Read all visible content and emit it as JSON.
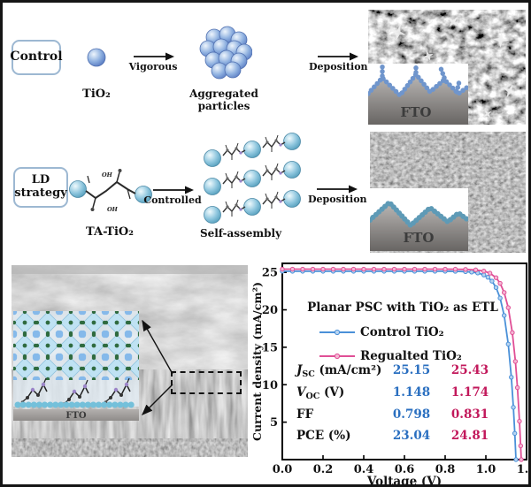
{
  "figure": {
    "rows": {
      "control": {
        "box_label": "Control",
        "particle_label": "TiO₂",
        "arrow1_label": "Vigorous",
        "aggregate_label": "Aggregated particles",
        "arrow2_label": "Deposition",
        "inset_label": "FTO"
      },
      "ld": {
        "box_label_line1": "LD",
        "box_label_line2": "strategy",
        "molecule_label": "TA-TiO₂",
        "arrow1_label": "Controlled",
        "assembly_label": "Self-assembly",
        "arrow2_label": "Deposition",
        "inset_label": "FTO"
      }
    },
    "sem_cross_section": {
      "inset_label": "FTO"
    }
  },
  "chart_data": {
    "type": "line",
    "title": "Planar PSC with TiO₂ as ETL",
    "xlabel": "Voltage (V)",
    "ylabel": "Current density (mA/cm²)",
    "xlim": [
      0,
      1.2
    ],
    "ylim": [
      0,
      26.2
    ],
    "xticks": [
      "0.0",
      "0.2",
      "0.4",
      "0.6",
      "0.8",
      "1.0",
      "1.2"
    ],
    "yticks": [
      5,
      10,
      15,
      20,
      25
    ],
    "grid": false,
    "legend_position": "inside-top-left",
    "series": [
      {
        "name": "Control TiO₂",
        "color": "#4a90d8",
        "marker_fill": "#b8d4f0",
        "jsc": 25.15,
        "voc": 1.148,
        "x": [
          0,
          0.05,
          0.1,
          0.15,
          0.2,
          0.25,
          0.3,
          0.35,
          0.4,
          0.45,
          0.5,
          0.55,
          0.6,
          0.65,
          0.7,
          0.75,
          0.8,
          0.85,
          0.9,
          0.93,
          0.96,
          0.99,
          1.01,
          1.03,
          1.05,
          1.07,
          1.09,
          1.11,
          1.125,
          1.135,
          1.142,
          1.148
        ],
        "y": [
          25.15,
          25.15,
          25.15,
          25.15,
          25.15,
          25.15,
          25.15,
          25.15,
          25.15,
          25.15,
          25.15,
          25.15,
          25.15,
          25.15,
          25.15,
          25.15,
          25.15,
          25.14,
          25.1,
          25.04,
          24.92,
          24.66,
          24.35,
          23.83,
          22.98,
          21.57,
          19.25,
          15.42,
          11.0,
          6.98,
          3.5,
          0
        ]
      },
      {
        "name": "Regualted TiO₂",
        "color": "#e04f96",
        "marker_fill": "#f4b8d4",
        "jsc": 25.43,
        "voc": 1.174,
        "x": [
          0,
          0.05,
          0.1,
          0.15,
          0.2,
          0.25,
          0.3,
          0.35,
          0.4,
          0.45,
          0.5,
          0.55,
          0.6,
          0.65,
          0.7,
          0.75,
          0.8,
          0.85,
          0.9,
          0.95,
          0.99,
          1.02,
          1.05,
          1.07,
          1.09,
          1.11,
          1.13,
          1.145,
          1.155,
          1.165,
          1.171,
          1.174
        ],
        "y": [
          25.43,
          25.43,
          25.43,
          25.43,
          25.43,
          25.43,
          25.43,
          25.43,
          25.43,
          25.43,
          25.43,
          25.43,
          25.43,
          25.43,
          25.43,
          25.43,
          25.43,
          25.42,
          25.4,
          25.33,
          25.17,
          24.89,
          24.29,
          23.54,
          22.31,
          20.29,
          16.96,
          13.11,
          9.61,
          5.12,
          1.84,
          0
        ]
      }
    ],
    "table": {
      "value_colors": {
        "control": "#2a6fc0",
        "regulated": "#c2185b"
      },
      "rows": [
        {
          "sym": "J",
          "italic": true,
          "sub": "SC",
          "unit": " (mA/cm²)",
          "control": "25.15",
          "regulated": "25.43"
        },
        {
          "sym": "V",
          "italic": true,
          "sub": "OC",
          "unit": " (V)",
          "control": "1.148",
          "regulated": "1.174"
        },
        {
          "sym": "FF",
          "italic": false,
          "sub": "",
          "unit": "",
          "control": "0.798",
          "regulated": "0.831"
        },
        {
          "sym": "PCE",
          "italic": false,
          "sub": "",
          "unit": " (%)",
          "control": "23.04",
          "regulated": "24.81"
        }
      ]
    }
  },
  "colors": {
    "accent_box_border": "#9db8d2",
    "sphere_blue": "#8fb1e0",
    "sphere_cyan": "#8ec6de",
    "control_curve": "#4a90d8",
    "regulated_curve": "#e04f96"
  }
}
